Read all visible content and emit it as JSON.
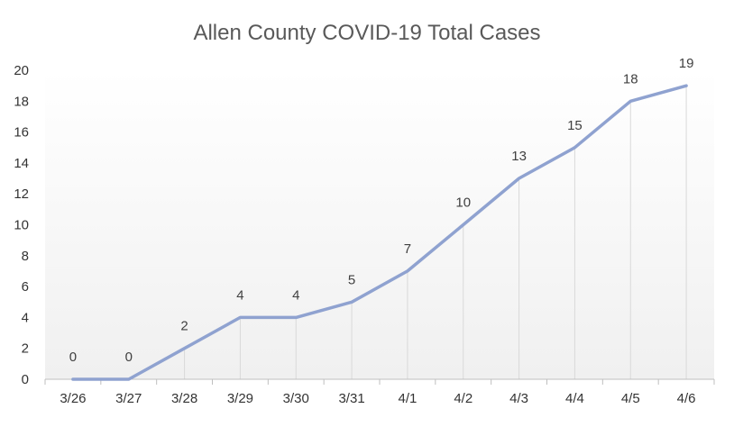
{
  "chart_data": {
    "type": "line",
    "title": "Allen County COVID-19 Total Cases",
    "xlabel": "",
    "ylabel": "",
    "categories": [
      "3/26",
      "3/27",
      "3/28",
      "3/29",
      "3/30",
      "3/31",
      "4/1",
      "4/2",
      "4/3",
      "4/4",
      "4/5",
      "4/6"
    ],
    "series": [
      {
        "values": [
          0,
          0,
          2,
          4,
          4,
          5,
          7,
          10,
          13,
          15,
          18,
          19
        ]
      }
    ],
    "ylim": [
      0,
      20
    ],
    "yticks": [
      0,
      2,
      4,
      6,
      8,
      10,
      12,
      14,
      16,
      18,
      20
    ],
    "grid": false,
    "drop_lines": true,
    "data_labels": true,
    "legend": "none",
    "line_color": "#8fa2d0"
  }
}
